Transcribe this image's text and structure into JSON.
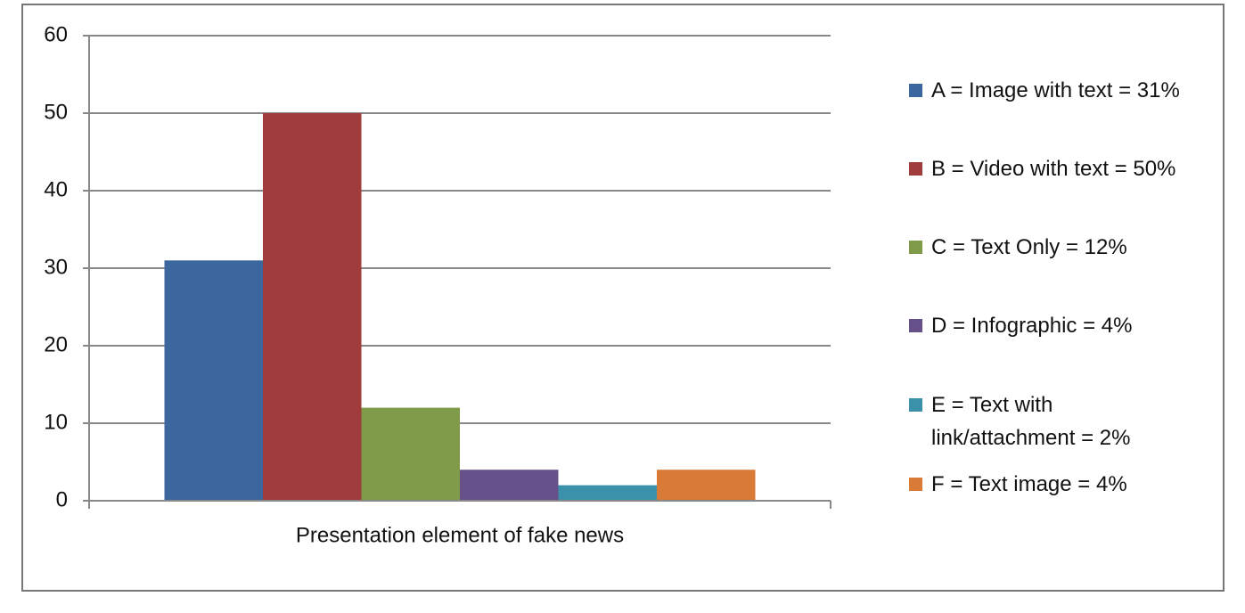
{
  "chart_data": {
    "type": "bar",
    "categories": [
      "Presentation element of fake news"
    ],
    "series": [
      {
        "name": "A = Image with text = 31%",
        "color": "#3c679e",
        "values": [
          31
        ]
      },
      {
        "name": "B = Video with text = 50%",
        "color": "#a03c3c",
        "values": [
          50
        ]
      },
      {
        "name": "C = Text Only = 12%",
        "color": "#7f9a48",
        "values": [
          12
        ]
      },
      {
        "name": "D = Infographic = 4%",
        "color": "#65508a",
        "values": [
          4
        ]
      },
      {
        "name": "E = Text with link/attachment = 2%",
        "color": "#3a91a9",
        "values": [
          2
        ]
      },
      {
        "name": "F = Text image = 4%",
        "color": "#d97b37",
        "values": [
          4
        ]
      }
    ],
    "ylim": [
      0,
      60
    ],
    "yticks": [
      0,
      10,
      20,
      30,
      40,
      50,
      60
    ],
    "grid": true,
    "legend": "right"
  }
}
